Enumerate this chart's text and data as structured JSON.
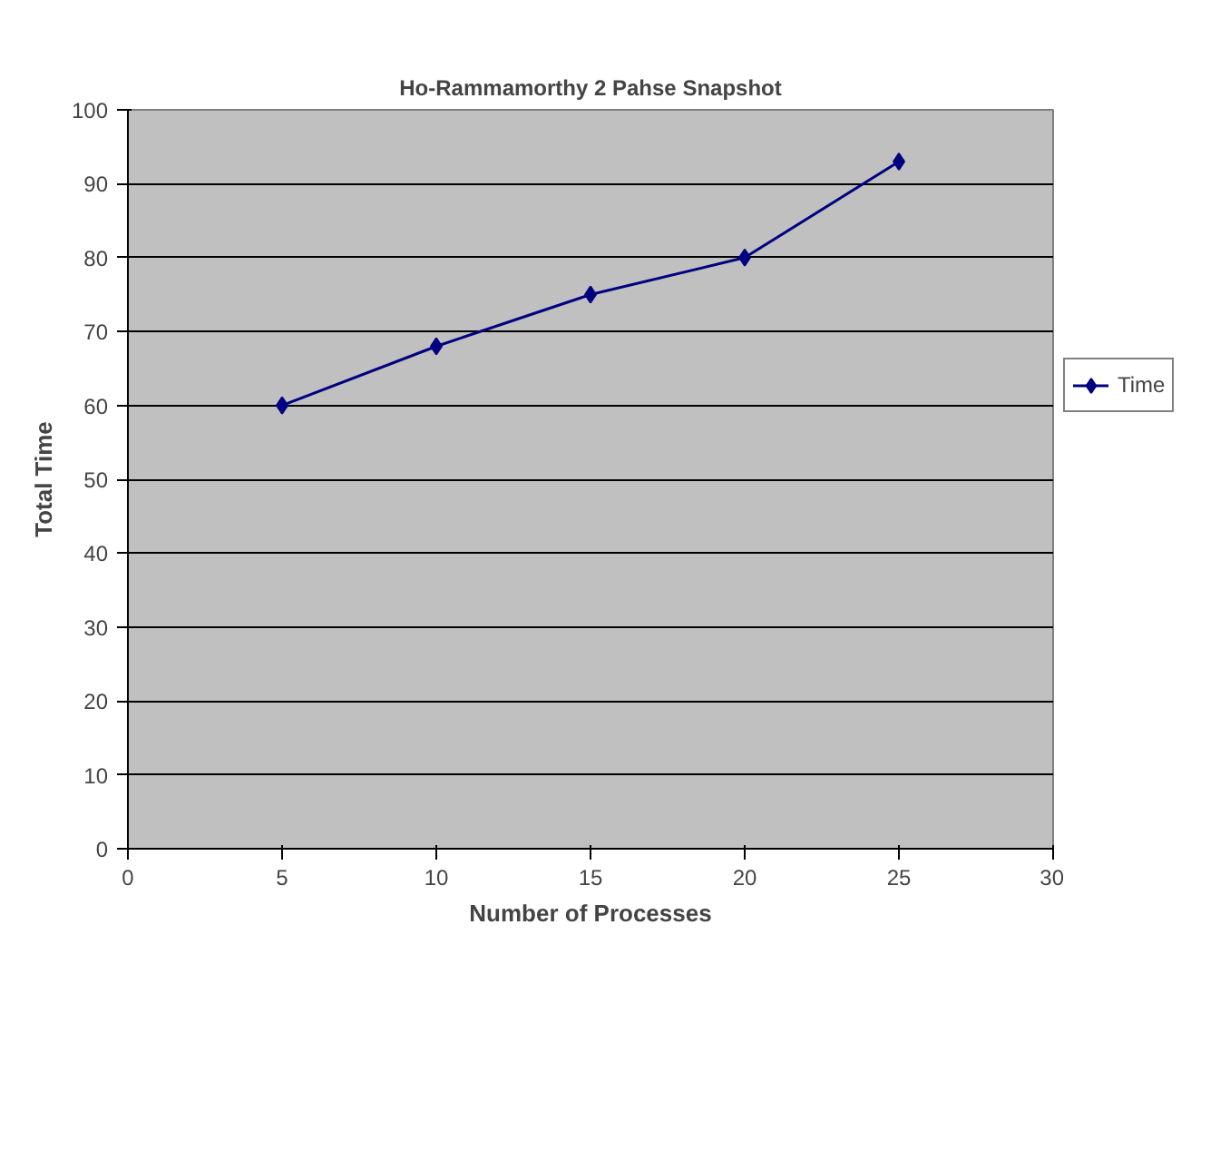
{
  "chart_data": {
    "type": "line",
    "title": "Ho-Rammamorthy 2 Pahse Snapshot",
    "xlabel": "Number of Processes",
    "ylabel": "Total Time",
    "x": [
      5,
      10,
      15,
      20,
      25
    ],
    "series": [
      {
        "name": "Time",
        "color": "#000080",
        "values": [
          60,
          68,
          75,
          80,
          93
        ]
      }
    ],
    "xlim": [
      0,
      30
    ],
    "xticks": [
      0,
      5,
      10,
      15,
      20,
      25,
      30
    ],
    "ylim": [
      0,
      100
    ],
    "yticks": [
      0,
      10,
      20,
      30,
      40,
      50,
      60,
      70,
      80,
      90,
      100
    ],
    "grid": "y",
    "legend": "right",
    "marker": "diamond",
    "line_style": "solid"
  }
}
